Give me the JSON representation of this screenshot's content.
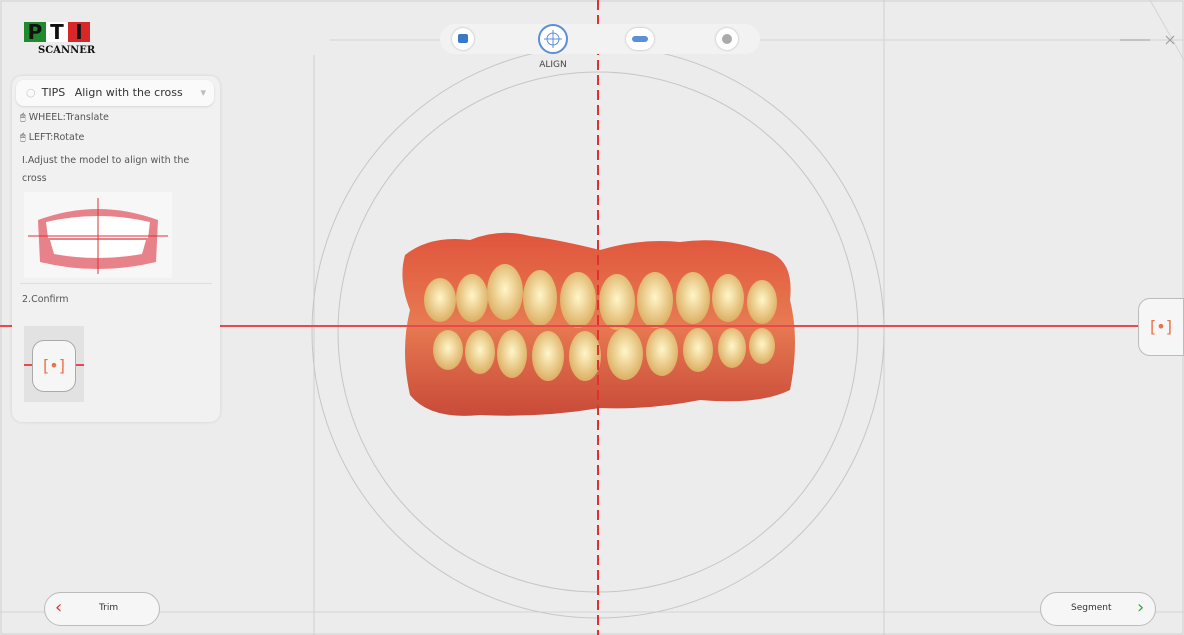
{
  "logo": {
    "letters": [
      "P",
      "T",
      "I"
    ],
    "subtitle": "SCANNER"
  },
  "toolbar": {
    "active_label": "ALIGN"
  },
  "tips": {
    "label": "TIPS",
    "title": "Align with the cross",
    "controls": [
      "WHEEL:Translate",
      "LEFT:Rotate"
    ],
    "steps": [
      "I.Adjust the model to align with the cross",
      "2.Confirm"
    ]
  },
  "nav": {
    "back": "Trim",
    "next": "Segment"
  }
}
